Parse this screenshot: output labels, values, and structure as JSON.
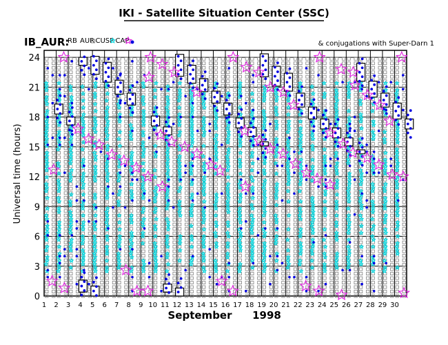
{
  "page_title": "IKI - Satellite Situation Center (SSC)",
  "header": {
    "prefix": "IB_AUR:",
    "legend": [
      {
        "label": "RB",
        "symbol": "box-large",
        "color": "#000000"
      },
      {
        "label": "AUR",
        "symbol": "box-small",
        "color": "#808080"
      },
      {
        "label": "CUSP",
        "symbol": "star-small",
        "color": "#00d8e0"
      },
      {
        "label": "CAP",
        "symbol": "star-large",
        "color": "#e020e0"
      },
      {
        "label": "",
        "symbol": "dot",
        "color": "#0000e0"
      }
    ],
    "note": "& conjugations with Super-Darn 1"
  },
  "xaxis": {
    "month": "September",
    "year": "1998"
  },
  "chart_data": {
    "type": "scatter",
    "title": "IKI - Satellite Situation Center (SSC)",
    "ylabel": "Universal time (hours)",
    "xlabel": "September 1998",
    "xlim": [
      1,
      31
    ],
    "ylim": [
      0,
      24
    ],
    "x_ticks": [
      1,
      2,
      3,
      4,
      5,
      6,
      7,
      8,
      9,
      10,
      11,
      12,
      13,
      14,
      15,
      16,
      17,
      18,
      19,
      20,
      21,
      22,
      23,
      24,
      25,
      26,
      27,
      28,
      29,
      30
    ],
    "y_ticks": [
      0,
      3,
      6,
      9,
      12,
      15,
      18,
      21,
      24
    ],
    "grid": true,
    "series": [
      {
        "name": "RB",
        "color": "#000000",
        "boxes": [
          [
            2,
            18.8,
            1.0
          ],
          [
            3,
            17.6,
            0.8
          ],
          [
            4,
            1.0,
            1.2
          ],
          [
            4,
            23.6,
            0.8
          ],
          [
            5,
            0.5,
            1.0
          ],
          [
            5,
            23.2,
            1.8
          ],
          [
            6,
            22.5,
            2.0
          ],
          [
            7,
            21.0,
            1.4
          ],
          [
            8,
            19.8,
            1.2
          ],
          [
            10,
            17.6,
            1.0
          ],
          [
            11,
            16.6,
            0.8
          ],
          [
            11,
            0.8,
            0.8
          ],
          [
            12,
            23.2,
            2.2
          ],
          [
            12,
            0.4,
            0.8
          ],
          [
            13,
            22.3,
            1.8
          ],
          [
            14,
            21.2,
            1.3
          ],
          [
            15,
            20.0,
            1.2
          ],
          [
            16,
            18.8,
            1.2
          ],
          [
            17,
            17.4,
            1.0
          ],
          [
            18,
            16.5,
            0.9
          ],
          [
            19,
            15.3,
            0.4
          ],
          [
            19,
            23.2,
            2.3
          ],
          [
            20,
            22.1,
            2.0
          ],
          [
            21,
            21.5,
            1.8
          ],
          [
            22,
            19.7,
            1.4
          ],
          [
            23,
            18.4,
            1.2
          ],
          [
            24,
            17.3,
            1.0
          ],
          [
            25,
            16.4,
            1.0
          ],
          [
            26,
            15.5,
            0.8
          ],
          [
            27,
            14.5,
            0.4
          ],
          [
            27,
            22.5,
            1.8
          ],
          [
            28,
            20.8,
            1.6
          ],
          [
            29,
            19.7,
            1.4
          ],
          [
            30,
            18.6,
            1.6
          ],
          [
            31,
            17.3,
            1.0
          ]
        ]
      },
      {
        "name": "CAP",
        "color": "#e020e0",
        "x": [
          2,
          2,
          3,
          3,
          4,
          5,
          6,
          7,
          8,
          8,
          9,
          9,
          10,
          10,
          10,
          10,
          11,
          11,
          11,
          12,
          12,
          13,
          14,
          14,
          15,
          16,
          16,
          17,
          17,
          18,
          18,
          18,
          19,
          19,
          20,
          20,
          21,
          21,
          22,
          22,
          23,
          23,
          24,
          24,
          24,
          25,
          25,
          26,
          26,
          26,
          27,
          27,
          27,
          28,
          28,
          29,
          29,
          30,
          30,
          31,
          31,
          31
        ],
        "y": [
          1.5,
          12.7,
          0.8,
          24.0,
          16.8,
          15.8,
          15.2,
          14.2,
          2.6,
          13.6,
          0.5,
          12.9,
          0.5,
          12.0,
          22.0,
          24.0,
          11.0,
          16.2,
          23.3,
          15.5,
          22.5,
          15.0,
          14.3,
          20.5,
          13.2,
          1.5,
          12.6,
          0.5,
          24.0,
          11.0,
          23.0,
          16.6,
          15.6,
          22.5,
          14.8,
          21.0,
          14.3,
          20.5,
          13.3,
          19.2,
          1.0,
          12.4,
          0.5,
          11.8,
          24.0,
          11.2,
          16.4,
          0.1,
          15.3,
          22.8,
          14.4,
          21.2,
          22.5,
          13.9,
          20.2,
          13.2,
          19.2,
          12.2,
          17.6,
          0.3,
          12.0,
          24.0
        ]
      },
      {
        "name": "AUR",
        "color": "#808080",
        "note": "small open squares in column tracks, dense throughout 0–24 h each day"
      },
      {
        "name": "CUSP",
        "color": "#00d8e0",
        "note": "cyan star markers dense along tracks, mostly 3–21 h"
      },
      {
        "name": "",
        "color": "#0000e0",
        "note": "blue dots near the RB boxes and along tracks"
      }
    ]
  }
}
